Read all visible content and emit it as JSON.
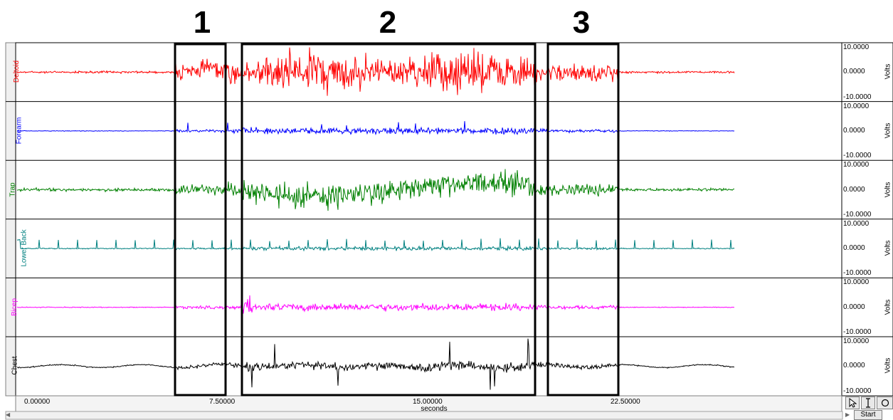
{
  "markers": [
    "1",
    "2",
    "3"
  ],
  "channels": [
    {
      "name": "Deltoid",
      "color": "#ff0000",
      "amp": 1.0,
      "style": "emg_burst"
    },
    {
      "name": "Forearm",
      "color": "#0000ff",
      "amp": 0.35,
      "style": "emg_low"
    },
    {
      "name": "Trap",
      "color": "#008000",
      "amp": 0.9,
      "style": "emg_trap"
    },
    {
      "name": "Lower Back",
      "color": "#008080",
      "amp": 0.55,
      "style": "ecg"
    },
    {
      "name": "Bicep",
      "color": "#ff00ff",
      "amp": 0.6,
      "style": "emg_bicep"
    },
    {
      "name": "Chest",
      "color": "#000000",
      "amp": 1.0,
      "style": "chest"
    }
  ],
  "scale": {
    "top": "10.0000",
    "mid": "0.0000",
    "bottom": "-10.0000",
    "unit": "Volts"
  },
  "time_axis": {
    "ticks": [
      "0.00000",
      "7.50000",
      "15.00000",
      "22.50000"
    ],
    "title": "seconds"
  },
  "toolbar": {
    "start_label": "Start",
    "tools": [
      "pointer-icon",
      "ibeam-icon",
      "zoom-icon"
    ]
  }
}
